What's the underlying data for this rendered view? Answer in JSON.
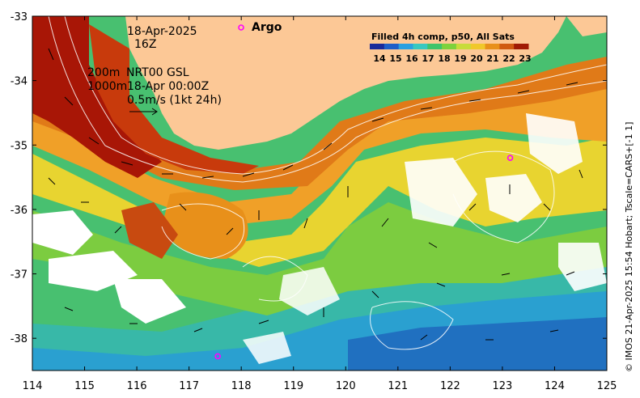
{
  "map": {
    "lon_ticks": [
      "114",
      "115",
      "116",
      "117",
      "118",
      "119",
      "120",
      "121",
      "122",
      "123",
      "124",
      "125"
    ],
    "lat_ticks": [
      "-33",
      "-34",
      "-35",
      "-36",
      "-37",
      "-38"
    ],
    "lon_range": [
      114,
      125
    ],
    "lat_range": [
      -38.5,
      -33
    ]
  },
  "annotations": {
    "date": "18-Apr-2025",
    "time": "16Z",
    "contour_200": "200m",
    "contour_1000": "1000m",
    "model": "NRT00 GSL",
    "model_time": "18-Apr 00:00Z",
    "vector_scale": "0.5m/s (1kt 24h)"
  },
  "argo": {
    "label": "Argo",
    "floats": [
      {
        "lon": 123.15,
        "lat": -35.2
      },
      {
        "lon": 117.55,
        "lat": -38.28
      }
    ],
    "color": "#ff00ff"
  },
  "colorbar": {
    "title": "Filled 4h comp, p50, All Sats",
    "labels": [
      "14",
      "15",
      "16",
      "17",
      "18",
      "19",
      "20",
      "21",
      "22",
      "23"
    ],
    "colors": [
      "#1a2a9a",
      "#1f5fc8",
      "#2aa0e0",
      "#38c8c0",
      "#3ec46a",
      "#7ed23c",
      "#c8dc3a",
      "#f0c82a",
      "#e8901a",
      "#d05a10",
      "#a01a04"
    ]
  },
  "credit": "© IMOS 21-Apr-2025 15:54 Hobart; Tscale=CARS+[-1 1]",
  "colors": {
    "land": "#fcc896"
  }
}
